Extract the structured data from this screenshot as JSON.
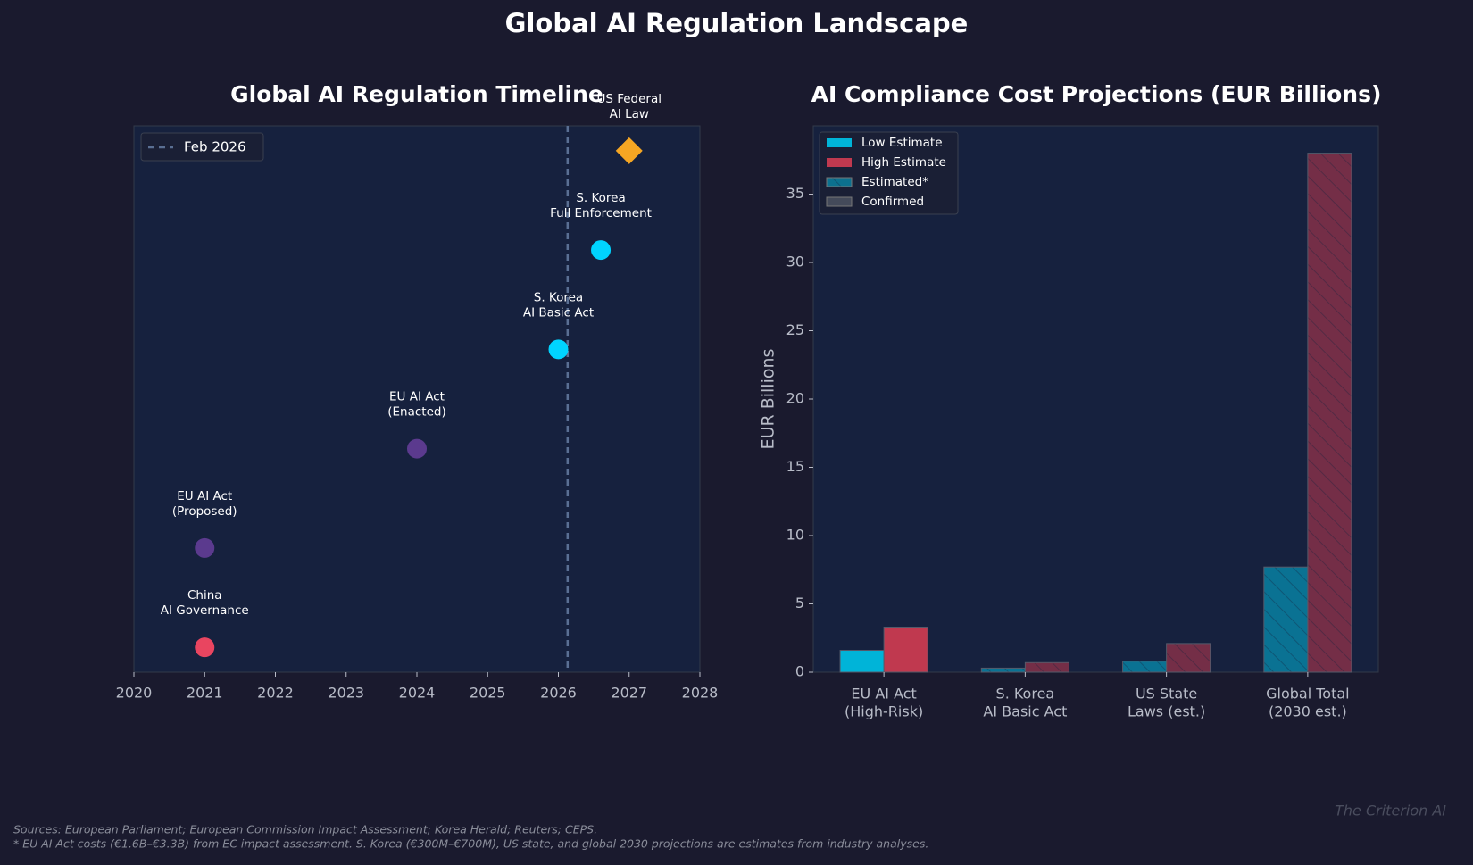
{
  "title": "Global AI Regulation Landscape",
  "chart_data": [
    {
      "type": "scatter",
      "title": "Global AI Regulation Timeline",
      "labels": [
        [
          "China",
          "AI Governance"
        ],
        [
          "EU AI Act",
          "(Proposed)"
        ],
        [
          "EU AI Act",
          "(Enacted)"
        ],
        [
          "S. Korea",
          "AI Basic Act"
        ],
        [
          "S. Korea",
          "Full Enforcement"
        ],
        [
          "US Federal",
          "AI Law"
        ]
      ],
      "x": [
        2021,
        2021,
        2024,
        2026,
        2026.6,
        2027
      ],
      "y": [
        1,
        2,
        3,
        4,
        5,
        6
      ],
      "colors": [
        "#e94560",
        "#5b3a8e",
        "#5b3a8e",
        "#00d4ff",
        "#00d4ff",
        "#f5a623"
      ],
      "markers": [
        "circle",
        "circle",
        "circle",
        "circle",
        "circle",
        "diamond"
      ],
      "vline": {
        "x": 2026.13,
        "label": "Feb 2026",
        "color": "#5a6f93"
      },
      "xlim": [
        2020,
        2028
      ],
      "ylim": [
        0.75,
        6.25
      ],
      "xticks": [
        2020,
        2021,
        2022,
        2023,
        2024,
        2025,
        2026,
        2027,
        2028
      ],
      "legend": "upper left"
    },
    {
      "type": "bar",
      "title": "AI Compliance Cost Projections (EUR Billions)",
      "ylabel": "EUR Billions",
      "categories": [
        [
          "EU AI Act",
          "(High-Risk)"
        ],
        [
          "S. Korea",
          "AI Basic Act"
        ],
        [
          "US State",
          "Laws (est.)"
        ],
        [
          "Global Total",
          "(2030 est.)"
        ]
      ],
      "estimated": [
        false,
        true,
        true,
        true
      ],
      "series": [
        {
          "name": "Low Estimate",
          "color": "#00b4d8",
          "values": [
            1.6,
            0.3,
            0.8,
            7.7
          ]
        },
        {
          "name": "High Estimate",
          "color": "#c0394f",
          "values": [
            3.3,
            0.7,
            2.1,
            38
          ]
        }
      ],
      "hatch_legend": [
        "Estimated*",
        "Confirmed"
      ],
      "ylim": [
        0,
        40
      ],
      "yticks": [
        0,
        5,
        10,
        15,
        20,
        25,
        30,
        35
      ],
      "legend": "upper left"
    }
  ],
  "footnotes": [
    "Sources: European Parliament; European Commission Impact Assessment; Korea Herald; Reuters; CEPS.",
    "* EU AI Act costs (€1.6B–€3.3B) from EC impact assessment. S. Korea (€300M–€700M), US state, and global 2030 projections are estimates from industry analyses."
  ],
  "watermark": "The Criterion AI"
}
